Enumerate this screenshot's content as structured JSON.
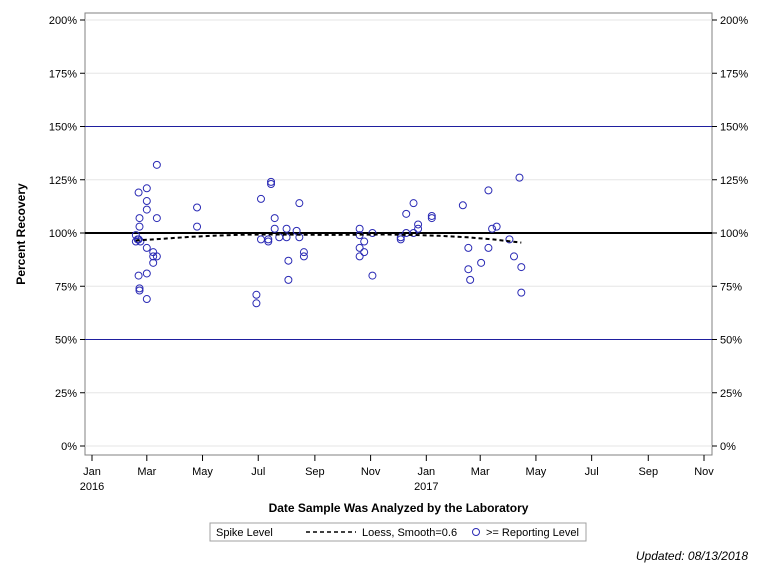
{
  "chart_data": {
    "type": "scatter",
    "ylabel": "Percent Recovery",
    "xlabel": "Date Sample Was Analyzed by the Laboratory",
    "ylim": [
      0,
      200
    ],
    "yticks": [
      "0%",
      "25%",
      "50%",
      "75%",
      "100%",
      "125%",
      "150%",
      "175%",
      "200%"
    ],
    "ytick_values": [
      0,
      25,
      50,
      75,
      100,
      125,
      150,
      175,
      200
    ],
    "xlim": [
      "2016-01-01",
      "2017-11-01"
    ],
    "xticks": [
      {
        "date": "2016-01-01",
        "label": "Jan",
        "year": "2016"
      },
      {
        "date": "2016-03-01",
        "label": "Mar",
        "year": ""
      },
      {
        "date": "2016-05-01",
        "label": "May",
        "year": ""
      },
      {
        "date": "2016-07-01",
        "label": "Jul",
        "year": ""
      },
      {
        "date": "2016-09-01",
        "label": "Sep",
        "year": ""
      },
      {
        "date": "2016-11-01",
        "label": "Nov",
        "year": ""
      },
      {
        "date": "2017-01-01",
        "label": "Jan",
        "year": "2017"
      },
      {
        "date": "2017-03-01",
        "label": "Mar",
        "year": ""
      },
      {
        "date": "2017-05-01",
        "label": "May",
        "year": ""
      },
      {
        "date": "2017-07-01",
        "label": "Jul",
        "year": ""
      },
      {
        "date": "2017-09-01",
        "label": "Sep",
        "year": ""
      },
      {
        "date": "2017-11-01",
        "label": "Nov",
        "year": ""
      }
    ],
    "reference_lines": [
      {
        "value": 150,
        "color": "#1f1f9f",
        "style": "thin"
      },
      {
        "value": 100,
        "color": "#000000",
        "style": "thick"
      },
      {
        "value": 50,
        "color": "#1f1f9f",
        "style": "thin"
      }
    ],
    "grid": true,
    "legend": {
      "title": "Spike Level",
      "entries": [
        "Loess, Smooth=0.6",
        ">= Reporting Level"
      ],
      "placement": "bottom"
    },
    "series": [
      {
        "name": ">= Reporting Level",
        "marker": "circle",
        "color": "#2b2bb5",
        "points": [
          [
            "2016-02-18",
            96
          ],
          [
            "2016-02-18",
            99
          ],
          [
            "2016-02-20",
            97
          ],
          [
            "2016-02-21",
            119
          ],
          [
            "2016-02-21",
            80
          ],
          [
            "2016-02-21",
            97
          ],
          [
            "2016-02-22",
            73
          ],
          [
            "2016-02-22",
            74
          ],
          [
            "2016-02-22",
            103
          ],
          [
            "2016-02-22",
            107
          ],
          [
            "2016-02-23",
            96
          ],
          [
            "2016-03-01",
            121
          ],
          [
            "2016-03-01",
            115
          ],
          [
            "2016-03-01",
            111
          ],
          [
            "2016-03-01",
            93
          ],
          [
            "2016-03-01",
            81
          ],
          [
            "2016-03-01",
            69
          ],
          [
            "2016-03-08",
            91
          ],
          [
            "2016-03-08",
            89
          ],
          [
            "2016-03-08",
            86
          ],
          [
            "2016-03-12",
            132
          ],
          [
            "2016-03-12",
            107
          ],
          [
            "2016-03-12",
            89
          ],
          [
            "2016-04-25",
            112
          ],
          [
            "2016-04-25",
            103
          ],
          [
            "2016-06-29",
            71
          ],
          [
            "2016-06-29",
            67
          ],
          [
            "2016-07-04",
            116
          ],
          [
            "2016-07-04",
            97
          ],
          [
            "2016-07-12",
            97
          ],
          [
            "2016-07-12",
            96
          ],
          [
            "2016-07-15",
            124
          ],
          [
            "2016-07-15",
            123
          ],
          [
            "2016-07-19",
            107
          ],
          [
            "2016-07-19",
            102
          ],
          [
            "2016-07-24",
            98
          ],
          [
            "2016-08-01",
            98
          ],
          [
            "2016-08-01",
            102
          ],
          [
            "2016-08-03",
            87
          ],
          [
            "2016-08-03",
            78
          ],
          [
            "2016-08-12",
            101
          ],
          [
            "2016-08-15",
            98
          ],
          [
            "2016-08-15",
            114
          ],
          [
            "2016-08-20",
            91
          ],
          [
            "2016-08-20",
            89
          ],
          [
            "2016-10-20",
            102
          ],
          [
            "2016-10-20",
            99
          ],
          [
            "2016-10-20",
            93
          ],
          [
            "2016-10-20",
            89
          ],
          [
            "2016-10-25",
            96
          ],
          [
            "2016-10-25",
            91
          ],
          [
            "2016-11-03",
            100
          ],
          [
            "2016-11-03",
            80
          ],
          [
            "2016-12-04",
            98
          ],
          [
            "2016-12-04",
            97
          ],
          [
            "2016-12-10",
            100
          ],
          [
            "2016-12-10",
            109
          ],
          [
            "2016-12-18",
            114
          ],
          [
            "2016-12-18",
            100
          ],
          [
            "2016-12-23",
            104
          ],
          [
            "2016-12-23",
            102
          ],
          [
            "2017-01-07",
            108
          ],
          [
            "2017-01-07",
            107
          ],
          [
            "2017-02-10",
            113
          ],
          [
            "2017-02-16",
            93
          ],
          [
            "2017-02-16",
            83
          ],
          [
            "2017-02-18",
            78
          ],
          [
            "2017-03-02",
            86
          ],
          [
            "2017-03-10",
            120
          ],
          [
            "2017-03-10",
            93
          ],
          [
            "2017-03-14",
            102
          ],
          [
            "2017-03-19",
            103
          ],
          [
            "2017-04-02",
            97
          ],
          [
            "2017-04-07",
            89
          ],
          [
            "2017-04-13",
            126
          ],
          [
            "2017-04-15",
            84
          ],
          [
            "2017-04-15",
            72
          ]
        ]
      },
      {
        "name": "Loess, Smooth=0.6",
        "line": "dashed",
        "color": "#000000",
        "points": [
          [
            "2016-02-18",
            96.5
          ],
          [
            "2016-03-15",
            97.2
          ],
          [
            "2016-04-15",
            98.1
          ],
          [
            "2016-05-15",
            98.8
          ],
          [
            "2016-06-15",
            99.2
          ],
          [
            "2016-07-15",
            99.3
          ],
          [
            "2016-08-15",
            99.2
          ],
          [
            "2016-09-15",
            99.1
          ],
          [
            "2016-10-15",
            99.2
          ],
          [
            "2016-11-15",
            99.3
          ],
          [
            "2016-12-15",
            99.1
          ],
          [
            "2017-01-15",
            98.7
          ],
          [
            "2017-02-15",
            98.0
          ],
          [
            "2017-03-15",
            97.0
          ],
          [
            "2017-04-15",
            95.5
          ]
        ]
      }
    ]
  },
  "footer": {
    "updated": "Updated: 08/13/2018"
  }
}
